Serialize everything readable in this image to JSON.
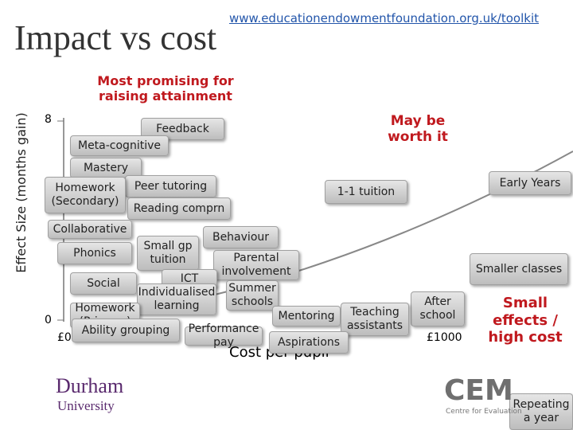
{
  "header": {
    "title": "Impact vs cost",
    "url": "www.educationendowmentfoundation.org.uk/toolkit"
  },
  "axis": {
    "y_label": "Effect Size (months gain)",
    "x_label": "Cost per pupil",
    "y_ticks": [
      "8",
      "0"
    ],
    "x_ticks": [
      "£0",
      "£1000"
    ]
  },
  "annotations": [
    "Most promising for raising attainment",
    "May be worth it",
    "Small effects / high cost"
  ],
  "nodes": [
    {
      "label": "Feedback"
    },
    {
      "label": "Meta-cognitive"
    },
    {
      "label": "Mastery"
    },
    {
      "label": "Peer tutoring"
    },
    {
      "label": "Homework (Secondary)"
    },
    {
      "label": "Reading comprn"
    },
    {
      "label": "1-1 tuition"
    },
    {
      "label": "Early Years"
    },
    {
      "label": "Collaborative"
    },
    {
      "label": "Behaviour"
    },
    {
      "label": "Small gp tuition"
    },
    {
      "label": "Phonics"
    },
    {
      "label": "Parental involvement"
    },
    {
      "label": "Smaller classes"
    },
    {
      "label": "Social"
    },
    {
      "label": "ICT"
    },
    {
      "label": "Individualised learning"
    },
    {
      "label": "Summer schools"
    },
    {
      "label": "After school"
    },
    {
      "label": "Mentoring"
    },
    {
      "label": "Teaching assistants"
    },
    {
      "label": "Homework (Primary)"
    },
    {
      "label": "Performance pay"
    },
    {
      "label": "Aspirations"
    },
    {
      "label": "Ability grouping"
    },
    {
      "label": "Repeating a year"
    }
  ],
  "logos": {
    "durham": "Durham",
    "durham_sub": "University",
    "cem": "CEM",
    "cem_sub": "Centre for Evaluation"
  }
}
